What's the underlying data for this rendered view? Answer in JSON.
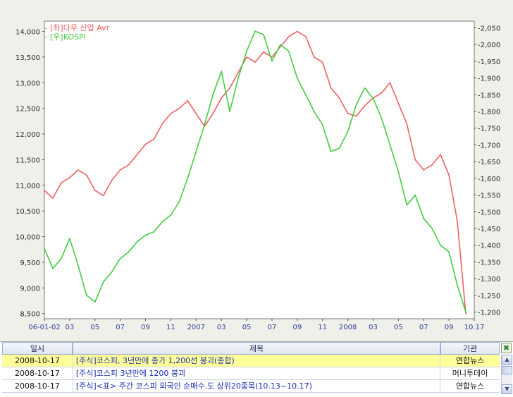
{
  "chart_data": {
    "type": "line",
    "series": [
      {
        "name": "[좌]다우 산업 Avr",
        "color": "#f06060",
        "axis": "left",
        "x": [
          0,
          0.02,
          0.04,
          0.06,
          0.08,
          0.1,
          0.12,
          0.14,
          0.16,
          0.18,
          0.2,
          0.22,
          0.24,
          0.26,
          0.28,
          0.3,
          0.32,
          0.34,
          0.36,
          0.38,
          0.4,
          0.42,
          0.44,
          0.46,
          0.48,
          0.5,
          0.52,
          0.54,
          0.56,
          0.58,
          0.6,
          0.62,
          0.64,
          0.66,
          0.68,
          0.7,
          0.72,
          0.74,
          0.76,
          0.78,
          0.8,
          0.82,
          0.84,
          0.86,
          0.88,
          0.9,
          0.92,
          0.94,
          0.96,
          0.98,
          1.0
        ],
        "values": [
          10900,
          10750,
          11050,
          11150,
          11300,
          11200,
          10900,
          10800,
          11100,
          11300,
          11400,
          11600,
          11800,
          11900,
          12200,
          12400,
          12500,
          12650,
          12400,
          12150,
          12400,
          12700,
          12900,
          13200,
          13500,
          13400,
          13600,
          13500,
          13700,
          13900,
          14000,
          13900,
          13500,
          13400,
          12900,
          12700,
          12400,
          12350,
          12550,
          12700,
          12800,
          13000,
          12600,
          12200,
          11500,
          11300,
          11400,
          11600,
          11200,
          10300,
          8500
        ]
      },
      {
        "name": "[우]KOSPI",
        "color": "#44cc44",
        "axis": "right",
        "x": [
          0,
          0.02,
          0.04,
          0.06,
          0.08,
          0.1,
          0.12,
          0.14,
          0.16,
          0.18,
          0.2,
          0.22,
          0.24,
          0.26,
          0.28,
          0.3,
          0.32,
          0.34,
          0.36,
          0.38,
          0.4,
          0.42,
          0.44,
          0.46,
          0.48,
          0.5,
          0.52,
          0.54,
          0.56,
          0.58,
          0.6,
          0.62,
          0.64,
          0.66,
          0.68,
          0.7,
          0.72,
          0.74,
          0.76,
          0.78,
          0.8,
          0.82,
          0.84,
          0.86,
          0.88,
          0.9,
          0.92,
          0.94,
          0.96,
          0.98,
          1.0
        ],
        "values": [
          1390,
          1330,
          1360,
          1420,
          1340,
          1250,
          1230,
          1290,
          1320,
          1360,
          1380,
          1410,
          1430,
          1440,
          1470,
          1490,
          1530,
          1600,
          1680,
          1760,
          1850,
          1920,
          1800,
          1900,
          1980,
          2040,
          2030,
          1950,
          2000,
          1980,
          1900,
          1850,
          1800,
          1760,
          1680,
          1690,
          1740,
          1820,
          1870,
          1840,
          1780,
          1700,
          1620,
          1520,
          1550,
          1480,
          1450,
          1400,
          1380,
          1280,
          1200
        ]
      }
    ],
    "x_tick_labels": [
      "06-01-02",
      "03",
      "05",
      "07",
      "09",
      "11",
      "2007",
      "03",
      "05",
      "07",
      "09",
      "11",
      "2008",
      "03",
      "05",
      "07",
      "09",
      "10.17"
    ],
    "left_axis": {
      "ticks": [
        "14,000",
        "13,500",
        "13,000",
        "12,500",
        "12,000",
        "11,500",
        "11,000",
        "10,500",
        "10,000",
        "9,500",
        "9,000",
        "8,500"
      ],
      "ylim": [
        8400,
        14200
      ]
    },
    "right_axis": {
      "ticks": [
        "2,050",
        "2,000",
        "1,950",
        "1,900",
        "1,850",
        "1,800",
        "1,750",
        "1,700",
        "1,650",
        "1,600",
        "1,550",
        "1,500",
        "1,450",
        "1,400",
        "1,350",
        "1,300",
        "1,250",
        "1,200"
      ],
      "ylim": [
        1180,
        2070
      ]
    },
    "legend_position": "top-left",
    "grid": false
  },
  "news": {
    "headers": {
      "date": "일시",
      "title": "제목",
      "source": "기관"
    },
    "close_label": "✖",
    "rows": [
      {
        "date": "2008-10-17",
        "title": "[주식]코스피, 3년만에 종가 1,200선 붕괴(종합)",
        "source": "연합뉴스"
      },
      {
        "date": "2008-10-17",
        "title": "[주식]코스피 3년만에 1200 붕괴",
        "source": "머니투데이"
      },
      {
        "date": "2008-10-17",
        "title": "[주식]<표> 주간 코스피 외국인 순매수.도 상위20종목(10.13~10.17)",
        "source": "연합뉴스"
      }
    ]
  }
}
